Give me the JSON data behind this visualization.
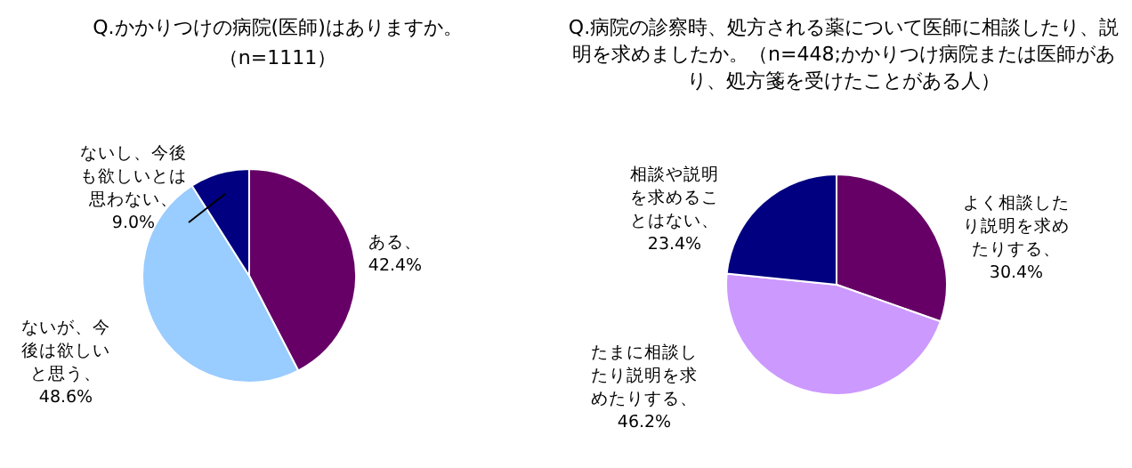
{
  "chart_data": [
    {
      "type": "pie",
      "title": "Q.かかりつけの病院(医師)はありますか。",
      "subtitle": "（n=1111）",
      "categories": [
        "ある",
        "ないが、今後は欲しいと思う",
        "ないし、今後も欲しいとは思わない"
      ],
      "values": [
        42.4,
        48.6,
        9.0
      ],
      "value_labels": [
        "、42.4%",
        "、48.6%",
        "、9.0%"
      ],
      "colors": [
        "#660066",
        "#99ccff",
        "#000080"
      ]
    },
    {
      "type": "pie",
      "title": "Q.病院の診察時、処方される薬について医師に相談したり、説明を求めましたか。（n=448;かかりつけ病院または医師があり、処方箋を受けたことがある人）",
      "categories": [
        "よく相談したり説明を求めたりする",
        "たまに相談したり説明を求めたりする",
        "相談や説明を求めることはない"
      ],
      "values": [
        30.4,
        46.2,
        23.4
      ],
      "value_labels": [
        "、30.4%",
        "、46.2%",
        "、23.4%"
      ],
      "colors": [
        "#660066",
        "#cc99ff",
        "#000080"
      ]
    }
  ]
}
